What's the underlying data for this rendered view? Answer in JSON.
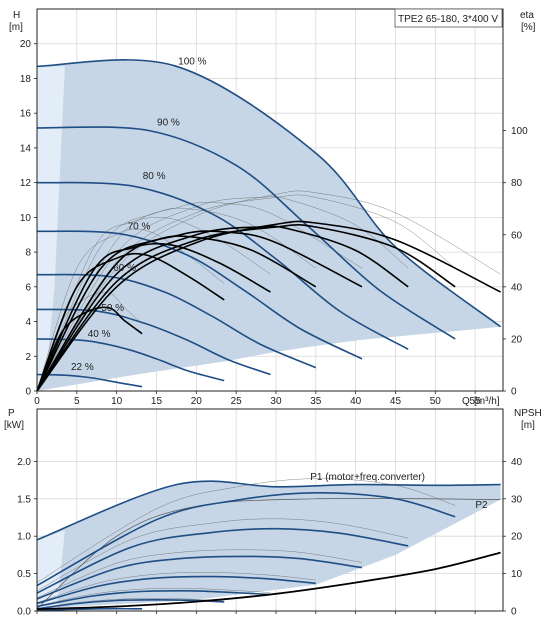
{
  "chart_data": [
    {
      "type": "line",
      "title": "TPE2 65-180, 3*400 V",
      "ylabel": "H",
      "yunit": "[m]",
      "y2label": "eta",
      "y2unit": "[%]",
      "xlabel": "Q",
      "xunit": "[m³/h]",
      "xlim": [
        0,
        58.5
      ],
      "ylim": [
        0,
        22
      ],
      "y2lim": [
        0,
        146.7
      ],
      "grid": true,
      "x_ticks": [
        0,
        5,
        10,
        15,
        20,
        25,
        30,
        35,
        40,
        45,
        50,
        55
      ],
      "y_ticks": [
        0,
        2,
        4,
        6,
        8,
        10,
        12,
        14,
        16,
        18,
        20
      ],
      "y2_ticks": [
        0,
        20,
        40,
        60,
        80,
        100
      ],
      "speed_labels": [
        {
          "label": "100 %",
          "x": 19.5,
          "y": 18.8
        },
        {
          "label": "90 %",
          "x": 16.5,
          "y": 15.3
        },
        {
          "label": "80 %",
          "x": 14.7,
          "y": 12.2
        },
        {
          "label": "70 %",
          "x": 12.8,
          "y": 9.3
        },
        {
          "label": "60 %",
          "x": 11.0,
          "y": 6.9
        },
        {
          "label": "50 %",
          "x": 9.5,
          "y": 4.6
        },
        {
          "label": "40 %",
          "x": 7.8,
          "y": 3.1
        },
        {
          "label": "22 %",
          "x": 5.7,
          "y": 1.2
        }
      ],
      "series": [
        {
          "values": [
            [
              0,
              18.7
            ],
            [
              17.5,
              18.7
            ],
            [
              35,
              13.7
            ],
            [
              45,
              8.3
            ],
            [
              58.2,
              3.7
            ]
          ]
        },
        {
          "values": [
            [
              0,
              15.15
            ],
            [
              14,
              15.0
            ],
            [
              25,
              13.0
            ],
            [
              34,
              9.5
            ],
            [
              43,
              5.8
            ],
            [
              52.5,
              3.0
            ]
          ]
        },
        {
          "values": [
            [
              0,
              12.0
            ],
            [
              12,
              11.8
            ],
            [
              22,
              10.2
            ],
            [
              30,
              7.6
            ],
            [
              38,
              4.6
            ],
            [
              46.6,
              2.4
            ]
          ]
        },
        {
          "values": [
            [
              0,
              9.2
            ],
            [
              10.5,
              9.05
            ],
            [
              19,
              7.8
            ],
            [
              26,
              5.8
            ],
            [
              33,
              3.6
            ],
            [
              40.8,
              1.85
            ]
          ]
        },
        {
          "values": [
            [
              0,
              6.7
            ],
            [
              9,
              6.6
            ],
            [
              16,
              5.7
            ],
            [
              22,
              4.3
            ],
            [
              28,
              2.7
            ],
            [
              35,
              1.35
            ]
          ]
        },
        {
          "values": [
            [
              0,
              4.7
            ],
            [
              7.5,
              4.6
            ],
            [
              13.5,
              3.9
            ],
            [
              19,
              2.9
            ],
            [
              24,
              1.8
            ],
            [
              29.3,
              0.95
            ]
          ]
        },
        {
          "values": [
            [
              0,
              3.0
            ],
            [
              6,
              2.9
            ],
            [
              11,
              2.45
            ],
            [
              15,
              1.85
            ],
            [
              19,
              1.15
            ],
            [
              23.5,
              0.6
            ]
          ]
        },
        {
          "values": [
            [
              0,
              0.95
            ],
            [
              4,
              0.9
            ],
            [
              7,
              0.75
            ],
            [
              10,
              0.5
            ],
            [
              13.2,
              0.25
            ]
          ]
        }
      ],
      "eff_series": [
        {
          "values": [
            [
              0,
              0
            ],
            [
              10,
              40
            ],
            [
              20,
              57
            ],
            [
              30,
              64
            ],
            [
              35,
              64.5
            ],
            [
              45,
              58
            ],
            [
              58.2,
              38
            ]
          ]
        },
        {
          "values": [
            [
              0,
              0
            ],
            [
              10,
              42
            ],
            [
              20,
              58
            ],
            [
              30,
              63
            ],
            [
              35,
              63
            ],
            [
              45,
              55
            ],
            [
              52.5,
              40
            ]
          ]
        },
        {
          "values": [
            [
              0,
              0
            ],
            [
              10,
              45
            ],
            [
              20,
              60
            ],
            [
              28,
              63
            ],
            [
              32,
              62
            ],
            [
              40,
              54
            ],
            [
              46.6,
              40
            ]
          ]
        },
        {
          "values": [
            [
              0,
              0
            ],
            [
              10,
              49
            ],
            [
              18,
              60
            ],
            [
              24,
              61
            ],
            [
              30,
              57
            ],
            [
              40.8,
              40
            ]
          ]
        },
        {
          "values": [
            [
              0,
              0
            ],
            [
              8,
              47
            ],
            [
              15,
              58
            ],
            [
              20,
              59
            ],
            [
              27,
              54
            ],
            [
              35,
              40
            ]
          ]
        },
        {
          "values": [
            [
              0,
              0
            ],
            [
              7,
              46
            ],
            [
              12,
              55
            ],
            [
              17,
              56
            ],
            [
              23,
              49
            ],
            [
              29.3,
              38
            ]
          ]
        },
        {
          "values": [
            [
              0,
              0
            ],
            [
              5,
              40
            ],
            [
              10,
              51
            ],
            [
              14,
              52
            ],
            [
              19,
              44
            ],
            [
              23.5,
              35
            ]
          ]
        },
        {
          "values": [
            [
              0,
              0
            ],
            [
              3,
              22
            ],
            [
              6,
              30
            ],
            [
              9,
              32
            ],
            [
              11,
              27
            ],
            [
              13.2,
              22
            ]
          ]
        }
      ]
    },
    {
      "type": "line",
      "ylabel": "P",
      "yunit": "[kW]",
      "y2label": "NPSH",
      "y2unit": "[m]",
      "xlim": [
        0,
        58.5
      ],
      "ylim": [
        0,
        2.7
      ],
      "y2lim": [
        0,
        54
      ],
      "grid": true,
      "y_ticks": [
        0.0,
        0.5,
        1.0,
        1.5,
        2.0
      ],
      "y_tick_labels": [
        "0.0",
        "0.5",
        "1.0",
        "1.5",
        "2.0"
      ],
      "y2_ticks": [
        0,
        10,
        20,
        30,
        40
      ],
      "annotations": [
        {
          "label": "P1 (motor+freq.converter)",
          "x": 41.5,
          "y": 1.75
        },
        {
          "label": "P2",
          "x": 55.8,
          "y": 1.38
        }
      ],
      "series": [
        {
          "name": "P1 (motor+freq.converter)",
          "values": [
            [
              0,
              0.95
            ],
            [
              17.5,
              1.69
            ],
            [
              30,
              1.66
            ],
            [
              40,
              1.69
            ],
            [
              50,
              1.68
            ],
            [
              58.2,
              1.69
            ]
          ]
        },
        {
          "name": "P2",
          "values": [
            [
              0,
              0.03
            ],
            [
              10,
              1.0
            ],
            [
              20,
              1.4
            ],
            [
              35,
              1.5
            ],
            [
              58.2,
              1.49
            ]
          ]
        }
      ],
      "power_curves": [
        {
          "values": [
            [
              0,
              0.34
            ],
            [
              15,
              1.22
            ],
            [
              25,
              1.48
            ],
            [
              35,
              1.58
            ],
            [
              45,
              1.5
            ],
            [
              52.5,
              1.26
            ]
          ]
        },
        {
          "values": [
            [
              0,
              0.24
            ],
            [
              12,
              0.86
            ],
            [
              22,
              1.05
            ],
            [
              30,
              1.1
            ],
            [
              38,
              1.04
            ],
            [
              46.6,
              0.87
            ]
          ]
        },
        {
          "values": [
            [
              0,
              0.16
            ],
            [
              10,
              0.57
            ],
            [
              18,
              0.7
            ],
            [
              26,
              0.73
            ],
            [
              33,
              0.7
            ],
            [
              40.8,
              0.58
            ]
          ]
        },
        {
          "values": [
            [
              0,
              0.1
            ],
            [
              8,
              0.34
            ],
            [
              15,
              0.44
            ],
            [
              22,
              0.46
            ],
            [
              29,
              0.43
            ],
            [
              35,
              0.37
            ]
          ]
        },
        {
          "values": [
            [
              0,
              0.06
            ],
            [
              7,
              0.2
            ],
            [
              13,
              0.26
            ],
            [
              19,
              0.27
            ],
            [
              24,
              0.25
            ],
            [
              29.3,
              0.22
            ]
          ]
        },
        {
          "values": [
            [
              0,
              0.03
            ],
            [
              5,
              0.1
            ],
            [
              10,
              0.14
            ],
            [
              15,
              0.15
            ],
            [
              20,
              0.14
            ],
            [
              23.5,
              0.12
            ]
          ]
        },
        {
          "values": [
            [
              0,
              0.01
            ],
            [
              4,
              0.02
            ],
            [
              8,
              0.03
            ],
            [
              13.2,
              0.03
            ]
          ]
        }
      ],
      "npsh_curve": {
        "values": [
          [
            0,
            0.5
          ],
          [
            10,
            1.2
          ],
          [
            20,
            2.5
          ],
          [
            30,
            4.6
          ],
          [
            40,
            7.6
          ],
          [
            50,
            11.2
          ],
          [
            58.2,
            15.6
          ]
        ]
      }
    }
  ],
  "colors": {
    "envelope_fill": "#c6d6e6",
    "envelope_light": "#e3edf7",
    "speed_curve": "#1f4e85",
    "eff_curve": "#000000",
    "grid": "#d8d8d8",
    "axis": "#222222",
    "annotation": "#1f4e85"
  }
}
